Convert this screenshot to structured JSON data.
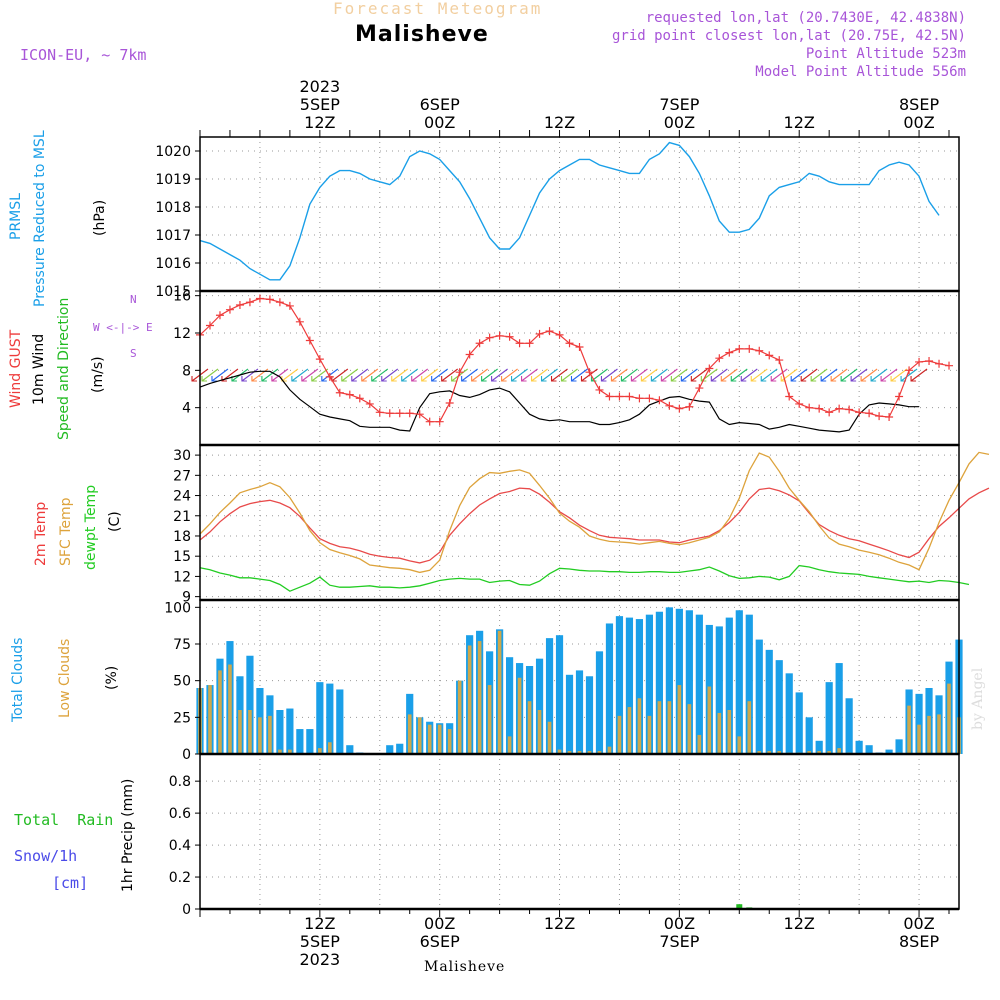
{
  "header": {
    "faded_title": "Forecast Meteogram",
    "location": "Malisheve",
    "model": "ICON-EU, ~ 7km",
    "requested": "requested lon,lat (20.7430E, 42.4838N)",
    "gridpoint": "grid point closest lon,lat (20.75E, 42.5N)",
    "point_alt": "Point Altitude 523m",
    "model_alt": "Model Point Altitude 556m"
  },
  "footer": {
    "location": "Malisheve"
  },
  "watermark": "by Angel",
  "colors": {
    "pressure": "#1a9fe8",
    "gust": "#ee3b3b",
    "wind": "#000000",
    "temp2m": "#e84a4a",
    "sfc": "#dda33c",
    "dew": "#22cc22",
    "clouds_total": "#1a9fe8",
    "clouds_low": "#cda84c",
    "rain": "#22bb22",
    "snow": "#4a4ae8",
    "purple": "#a855d8"
  },
  "time_axis": {
    "top": [
      {
        "t": 12,
        "lines": [
          "2023",
          "5SEP",
          "12Z"
        ]
      },
      {
        "t": 24,
        "lines": [
          "6SEP",
          "00Z"
        ]
      },
      {
        "t": 36,
        "lines": [
          "12Z"
        ]
      },
      {
        "t": 48,
        "lines": [
          "7SEP",
          "00Z"
        ]
      },
      {
        "t": 60,
        "lines": [
          "12Z"
        ]
      },
      {
        "t": 72,
        "lines": [
          "8SEP",
          "00Z"
        ]
      }
    ],
    "bottom": [
      {
        "t": 12,
        "lines": [
          "12Z",
          "5SEP",
          "2023"
        ]
      },
      {
        "t": 24,
        "lines": [
          "00Z",
          "6SEP"
        ]
      },
      {
        "t": 36,
        "lines": [
          "12Z"
        ]
      },
      {
        "t": 48,
        "lines": [
          "00Z",
          "7SEP"
        ]
      },
      {
        "t": 60,
        "lines": [
          "12Z"
        ]
      },
      {
        "t": 72,
        "lines": [
          "00Z",
          "8SEP"
        ]
      }
    ]
  },
  "panel_labels": {
    "pressure": [
      "PRMSL",
      "Pressure Reduced to MSL",
      "(hPa)"
    ],
    "wind": [
      "Wind GUST",
      "10m Wind",
      "Speed and Direction",
      "(m/s)"
    ],
    "compass": [
      "N",
      "W <-|-> E",
      "S"
    ],
    "temp": [
      "2m Temp",
      "SFC Temp",
      "dewpt Temp",
      "(C)"
    ],
    "clouds": [
      "Total Clouds",
      "Low Clouds",
      "(%)"
    ],
    "precip": [
      "Total  Rain",
      "Snow/1h",
      "[cm]",
      "1hr Precip (mm)"
    ]
  },
  "chart_data": [
    {
      "type": "line",
      "ylabel": "(hPa)",
      "yticks": [
        1015,
        1016,
        1017,
        1018,
        1019,
        1020
      ],
      "ylim": [
        1015,
        1020.5
      ],
      "series": [
        {
          "name": "PRMSL",
          "values": [
            1016.8,
            1016.7,
            1016.5,
            1016.3,
            1016.1,
            1015.8,
            1015.6,
            1015.4,
            1015.4,
            1015.9,
            1016.9,
            1018.1,
            1018.7,
            1019.1,
            1019.3,
            1019.3,
            1019.2,
            1019.0,
            1018.9,
            1018.8,
            1019.1,
            1019.8,
            1020.0,
            1019.9,
            1019.7,
            1019.3,
            1018.9,
            1018.3,
            1017.6,
            1016.9,
            1016.5,
            1016.5,
            1016.9,
            1017.7,
            1018.5,
            1019.0,
            1019.3,
            1019.5,
            1019.7,
            1019.7,
            1019.5,
            1019.4,
            1019.3,
            1019.2,
            1019.2,
            1019.7,
            1019.9,
            1020.3,
            1020.2,
            1019.8,
            1019.2,
            1018.4,
            1017.5,
            1017.1,
            1017.1,
            1017.2,
            1017.6,
            1018.4,
            1018.7,
            1018.8,
            1018.9,
            1019.2,
            1019.1,
            1018.9,
            1018.8,
            1018.8,
            1018.8,
            1018.8,
            1019.3,
            1019.5,
            1019.6,
            1019.5,
            1019.1,
            1018.2,
            1017.7
          ]
        }
      ]
    },
    {
      "type": "line",
      "ylabel": "(m/s)",
      "yticks": [
        4,
        8,
        12,
        16
      ],
      "ylim": [
        0,
        16.5
      ],
      "series": [
        {
          "name": "Wind GUST",
          "values": [
            11.8,
            12.8,
            13.9,
            14.5,
            15.0,
            15.3,
            15.7,
            15.6,
            15.3,
            14.9,
            13.2,
            11.2,
            9.2,
            7.3,
            5.6,
            5.4,
            5.0,
            4.4,
            3.5,
            3.4,
            3.4,
            3.4,
            3.3,
            2.5,
            2.5,
            4.5,
            7.8,
            9.7,
            10.9,
            11.5,
            11.7,
            11.6,
            10.9,
            10.9,
            11.9,
            12.2,
            11.8,
            10.9,
            10.5,
            7.8,
            5.9,
            5.2,
            5.2,
            5.2,
            5.0,
            5.0,
            4.8,
            4.2,
            3.9,
            4.1,
            6.1,
            8.2,
            9.3,
            9.9,
            10.3,
            10.3,
            10.1,
            9.6,
            9.1,
            5.2,
            4.4,
            4.0,
            3.9,
            3.5,
            3.9,
            3.8,
            3.5,
            3.4,
            3.1,
            3.0,
            5.2,
            8.0,
            8.9,
            9.0,
            8.7,
            8.5
          ]
        },
        {
          "name": "10m Wind",
          "values": [
            6.2,
            6.6,
            6.9,
            7.2,
            7.5,
            7.8,
            7.9,
            7.9,
            7.3,
            5.9,
            4.9,
            4.1,
            3.3,
            3.0,
            2.8,
            2.6,
            2.0,
            1.9,
            1.9,
            1.9,
            1.6,
            1.5,
            4.0,
            5.5,
            5.7,
            5.8,
            5.3,
            5.1,
            5.4,
            5.9,
            6.1,
            5.7,
            4.5,
            3.3,
            2.8,
            2.6,
            2.7,
            2.5,
            2.5,
            2.5,
            2.2,
            2.2,
            2.4,
            2.7,
            3.3,
            4.3,
            4.7,
            5.1,
            5.2,
            4.9,
            4.7,
            4.6,
            2.8,
            2.2,
            2.4,
            2.3,
            2.2,
            1.7,
            1.9,
            2.2,
            2.0,
            1.8,
            1.6,
            1.5,
            1.4,
            1.6,
            3.3,
            4.3,
            4.5,
            4.4,
            4.3,
            4.1,
            4.1
          ]
        }
      ]
    },
    {
      "type": "line",
      "ylabel": "(C)",
      "yticks": [
        9,
        12,
        15,
        18,
        21,
        24,
        27,
        30
      ],
      "ylim": [
        8.5,
        31.5
      ],
      "series": [
        {
          "name": "2m Temp",
          "values": [
            17.4,
            18.6,
            20.1,
            21.3,
            22.3,
            22.8,
            23.1,
            23.3,
            22.9,
            22.2,
            20.9,
            19.2,
            17.6,
            16.9,
            16.4,
            16.2,
            15.8,
            15.3,
            15.0,
            14.8,
            14.7,
            14.3,
            14.0,
            14.4,
            15.6,
            18.1,
            19.8,
            21.3,
            22.6,
            23.5,
            24.3,
            24.6,
            25.1,
            25.0,
            24.2,
            23.0,
            21.6,
            20.7,
            19.6,
            18.8,
            18.1,
            17.8,
            17.7,
            17.6,
            17.4,
            17.4,
            17.4,
            17.1,
            17.0,
            17.4,
            17.7,
            18.0,
            18.8,
            20.0,
            21.5,
            23.5,
            24.9,
            25.1,
            24.7,
            24.1,
            23.2,
            21.4,
            19.7,
            18.8,
            18.1,
            17.6,
            17.3,
            16.8,
            16.3,
            15.8,
            15.2,
            14.8,
            15.6,
            17.6,
            19.4,
            20.7,
            22.1,
            23.5,
            24.4,
            25.1
          ]
        },
        {
          "name": "SFC Temp",
          "values": [
            18.3,
            19.8,
            21.5,
            22.9,
            24.4,
            24.9,
            25.3,
            25.9,
            25.3,
            23.7,
            21.4,
            18.8,
            17.0,
            16.0,
            15.5,
            15.1,
            14.6,
            13.7,
            13.5,
            13.3,
            13.2,
            13.0,
            12.6,
            12.9,
            14.4,
            18.8,
            22.5,
            25.2,
            26.5,
            27.4,
            27.3,
            27.6,
            27.8,
            27.3,
            25.5,
            23.6,
            21.4,
            20.2,
            19.3,
            18.0,
            17.5,
            17.2,
            17.1,
            17.0,
            16.8,
            17.0,
            17.2,
            16.9,
            16.7,
            17.0,
            17.4,
            17.8,
            18.6,
            20.6,
            23.6,
            27.7,
            30.3,
            29.7,
            27.6,
            25.1,
            23.3,
            21.6,
            19.5,
            17.7,
            16.8,
            16.4,
            15.9,
            15.6,
            15.2,
            14.7,
            14.1,
            13.7,
            13.0,
            16.2,
            20.0,
            23.3,
            25.9,
            28.7,
            30.4,
            30.1
          ]
        },
        {
          "name": "dewpt Temp",
          "values": [
            13.3,
            13.0,
            12.5,
            12.2,
            11.8,
            11.8,
            11.6,
            11.4,
            10.8,
            9.8,
            10.4,
            11.0,
            11.9,
            10.7,
            10.4,
            10.4,
            10.5,
            10.6,
            10.4,
            10.4,
            10.3,
            10.4,
            10.6,
            11.0,
            11.4,
            11.6,
            11.7,
            11.6,
            11.6,
            11.1,
            11.3,
            11.4,
            10.8,
            10.7,
            11.3,
            12.4,
            13.2,
            13.1,
            12.9,
            12.8,
            12.8,
            12.7,
            12.7,
            12.6,
            12.6,
            12.7,
            12.7,
            12.6,
            12.6,
            12.8,
            13.0,
            13.4,
            12.8,
            12.1,
            11.7,
            11.8,
            12.0,
            11.9,
            11.5,
            12.0,
            13.6,
            13.4,
            13.0,
            12.7,
            12.5,
            12.4,
            12.3,
            12.0,
            11.8,
            11.6,
            11.4,
            11.2,
            11.3,
            11.1,
            11.4,
            11.3,
            11.1,
            10.8
          ]
        }
      ]
    },
    {
      "type": "bar",
      "ylabel": "(%)",
      "yticks": [
        0,
        25,
        50,
        75,
        100
      ],
      "ylim": [
        0,
        105
      ],
      "series": [
        {
          "name": "Total Clouds",
          "values": [
            45,
            47,
            65,
            77,
            53,
            67,
            45,
            40,
            30,
            31,
            17,
            17,
            49,
            48,
            44,
            6,
            1,
            0,
            0,
            6,
            7,
            41,
            25,
            22,
            21,
            21,
            50,
            81,
            84,
            70,
            85,
            66,
            62,
            60,
            65,
            79,
            81,
            54,
            57,
            53,
            70,
            89,
            94,
            93,
            92,
            95,
            97,
            100,
            99,
            98,
            95,
            88,
            87,
            93,
            98,
            95,
            78,
            71,
            64,
            55,
            42,
            25,
            9,
            49,
            62,
            38,
            9,
            6,
            1,
            3,
            10,
            44,
            41,
            45,
            40,
            63,
            78
          ]
        },
        {
          "name": "Low Clouds",
          "values": [
            45,
            47,
            57,
            61,
            30,
            30,
            25,
            26,
            3,
            3,
            0,
            0,
            4,
            8,
            0,
            0,
            0,
            0,
            0,
            0,
            0,
            27,
            25,
            20,
            20,
            17,
            50,
            74,
            77,
            47,
            84,
            12,
            52,
            36,
            30,
            22,
            3,
            2,
            2,
            2,
            2,
            5,
            26,
            32,
            38,
            26,
            36,
            36,
            47,
            34,
            13,
            46,
            28,
            30,
            12,
            36,
            2,
            2,
            2,
            1,
            1,
            2,
            2,
            2,
            4,
            1,
            0,
            0,
            0,
            0,
            1,
            33,
            20,
            26,
            27,
            48,
            25
          ]
        }
      ]
    },
    {
      "type": "bar",
      "ylabel": "1hr Precip (mm)",
      "yticks": [
        0,
        0.2,
        0.4,
        0.6,
        0.8
      ],
      "ylim": [
        0,
        0.97
      ],
      "series": [
        {
          "name": "Total Rain",
          "values": [
            {
              "t": 54,
              "v": 0.03
            },
            {
              "t": 55,
              "v": 0.01
            },
            {
              "t": 56,
              "v": 0.005
            }
          ]
        }
      ]
    }
  ]
}
